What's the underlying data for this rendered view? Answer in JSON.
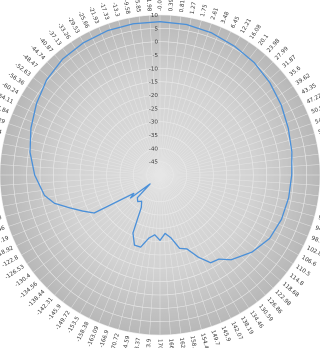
{
  "chart_data": {
    "type": "line",
    "projection": "polar",
    "zero_direction": "top",
    "angle_direction": "clockwise",
    "angle_unit": "degrees",
    "radial_unit": "dB",
    "radial_range": [
      -50,
      10
    ],
    "radial_ticks": [
      "10",
      "5",
      "0",
      "-5",
      "-10",
      "-15",
      "-20",
      "-25",
      "-30",
      "-35",
      "-40",
      "-45"
    ],
    "angle_ticks": [
      "-0.08",
      "0.39",
      "0.81",
      "1.27",
      "1.75",
      "2.61",
      "3.48",
      "6.45",
      "12.21",
      "16.08",
      "20.1",
      "23.98",
      "27.99",
      "31.87",
      "35.6",
      "39.62",
      "43.35",
      "47.22",
      "50.95",
      "54.9",
      "58.9",
      "62.9",
      "66.9",
      "70.9",
      "74.9",
      "78.9",
      "82.9",
      "86.9",
      "90.9",
      "94.9",
      "98.9",
      "102.8",
      "106.6",
      "110.5",
      "114.8",
      "118.68",
      "122.98",
      "126.86",
      "130.59",
      "134.46",
      "138.19",
      "142.07",
      "145.9",
      "149.7",
      "154.43",
      "158.3",
      "162.47",
      "166.3",
      "170.17",
      "173.9",
      "-178.37",
      "-174.59",
      "-170.72",
      "-166.9",
      "-163.09",
      "-158.38",
      "-153.5",
      "-149.72",
      "-145.9",
      "-142.31",
      "-138.44",
      "-134.56",
      "-130.4",
      "-126.53",
      "-122.8",
      "-118.92",
      "-115.19",
      "-111.46",
      "-107.73",
      "-103.9",
      "-99.9",
      "-95.9",
      "-91.9",
      "-87.9",
      "-83.9",
      "-79.9",
      "-76.04",
      "-72.29",
      "-67.84",
      "-64.11",
      "-60.24",
      "-56.36",
      "-52.63",
      "-48.47",
      "-44.74",
      "-40.87",
      "-37.13",
      "-33.26",
      "-29.53",
      "-25.66",
      "-21.93",
      "-17.33",
      "-13.3",
      "-9.58",
      "-5.85",
      "-1.98"
    ],
    "theta": [
      0,
      10,
      20,
      30,
      40,
      50,
      60,
      70,
      80,
      90,
      100,
      110,
      120,
      130,
      135,
      140,
      145,
      150,
      155,
      160,
      165,
      170,
      175,
      180,
      185,
      190,
      195,
      200,
      205,
      210,
      215,
      220,
      225,
      228,
      232,
      235,
      240,
      245,
      250,
      255,
      260,
      270,
      280,
      290,
      300,
      310,
      320,
      330,
      340,
      350
    ],
    "r": [
      7.5,
      7.3,
      6.7,
      5.8,
      5.0,
      3.8,
      2.5,
      1.2,
      0.2,
      -0.6,
      -1.0,
      -1.5,
      -2.5,
      -5.0,
      -7.0,
      -8.5,
      -11.5,
      -12.0,
      -16.0,
      -20.5,
      -21.5,
      -26.0,
      -28.0,
      -25.5,
      -27.5,
      -26.0,
      -22.0,
      -22.0,
      -26.0,
      -36.0,
      -38.0,
      -37.0,
      -38.0,
      -45.0,
      -36.0,
      -38.0,
      -21.5,
      -18.0,
      -14.0,
      -9.0,
      -6.0,
      -3.0,
      -0.5,
      1.5,
      3.5,
      5.5,
      6.8,
      7.3,
      7.6,
      7.6
    ],
    "line_color": "#4a90d9",
    "grid": true
  }
}
